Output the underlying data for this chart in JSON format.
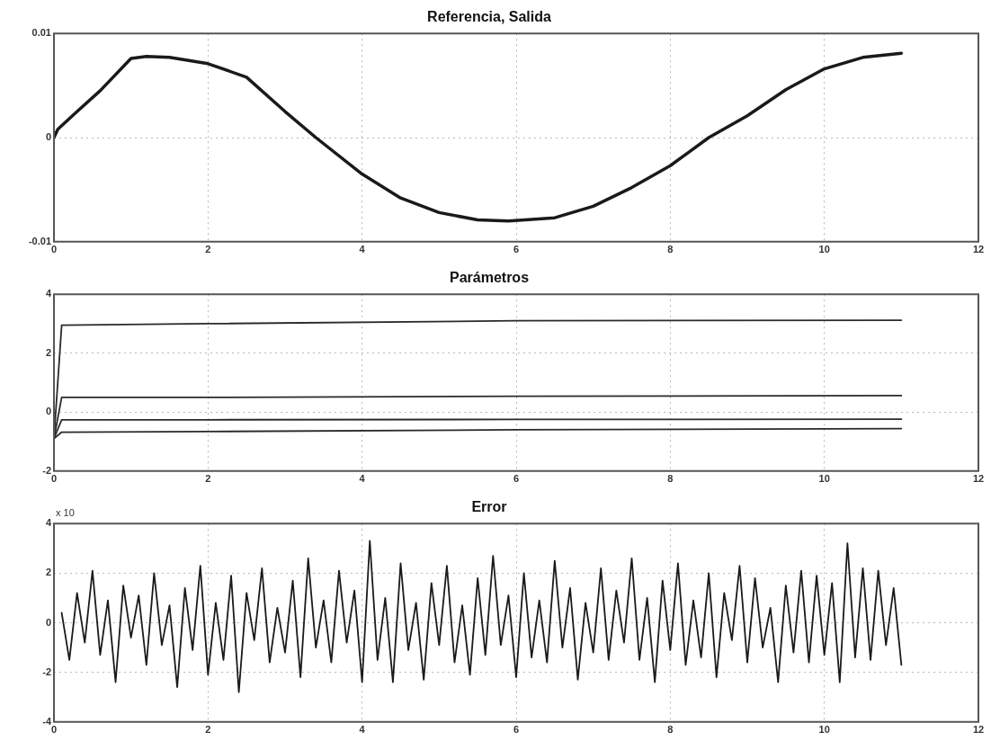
{
  "chart_data": [
    {
      "type": "line",
      "title": "Referencia, Salida",
      "xlim": [
        0,
        12
      ],
      "xticks": [
        0,
        2,
        4,
        6,
        8,
        10,
        12
      ],
      "ylim": [
        -0.01,
        0.01
      ],
      "yticks": [
        -0.01,
        0,
        0.01
      ],
      "grid": true,
      "series": [
        {
          "color": "#1a1a1a",
          "x": [
            0,
            0.05,
            0.3,
            0.6,
            1.0,
            1.2,
            1.5,
            2.0,
            2.5,
            3.0,
            3.4,
            4.0,
            4.5,
            5.0,
            5.5,
            5.9,
            6.5,
            7.0,
            7.5,
            8.0,
            8.5,
            9.0,
            9.5,
            10.0,
            10.5,
            11.0
          ],
          "values": [
            0,
            0.0008,
            0.0025,
            0.0045,
            0.0076,
            0.0078,
            0.0077,
            0.0071,
            0.0058,
            0.0025,
            0,
            -0.0035,
            -0.0058,
            -0.0072,
            -0.0079,
            -0.008,
            -0.0077,
            -0.0066,
            -0.0048,
            -0.0027,
            0,
            0.0021,
            0.0046,
            0.0066,
            0.0077,
            0.0081
          ]
        }
      ]
    },
    {
      "type": "line",
      "title": "Parámetros",
      "xlim": [
        0,
        12
      ],
      "xticks": [
        0,
        2,
        4,
        6,
        8,
        10,
        12
      ],
      "ylim": [
        -2,
        4
      ],
      "yticks": [
        -2,
        0,
        2,
        4
      ],
      "grid": true,
      "series": [
        {
          "color": "#2a2a2a",
          "x": [
            0,
            0.1,
            2,
            6,
            11
          ],
          "values": [
            -0.9,
            2.95,
            3.0,
            3.1,
            3.12
          ]
        },
        {
          "color": "#2a2a2a",
          "x": [
            0,
            0.1,
            2,
            6,
            11
          ],
          "values": [
            -0.9,
            0.5,
            0.5,
            0.54,
            0.56
          ]
        },
        {
          "color": "#2a2a2a",
          "x": [
            0,
            0.1,
            2,
            6,
            11
          ],
          "values": [
            -0.9,
            -0.26,
            -0.26,
            -0.25,
            -0.24
          ]
        },
        {
          "color": "#2a2a2a",
          "x": [
            0,
            0.1,
            2,
            6,
            11
          ],
          "values": [
            -0.9,
            -0.68,
            -0.66,
            -0.6,
            -0.56
          ]
        }
      ]
    },
    {
      "type": "line",
      "title": "Error",
      "xlim": [
        0,
        12
      ],
      "xticks": [
        0,
        2,
        4,
        6,
        8,
        10,
        12
      ],
      "ylim": [
        -4,
        4
      ],
      "yticks": [
        -4,
        -2,
        0,
        2,
        4
      ],
      "grid": true,
      "annotations": [
        "x 10"
      ],
      "series": [
        {
          "color": "#1a1a1a",
          "x": [
            0.1,
            0.2,
            0.3,
            0.4,
            0.5,
            0.6,
            0.7,
            0.8,
            0.9,
            1.0,
            1.1,
            1.2,
            1.3,
            1.4,
            1.5,
            1.6,
            1.7,
            1.8,
            1.9,
            2.0,
            2.1,
            2.2,
            2.3,
            2.4,
            2.5,
            2.6,
            2.7,
            2.8,
            2.9,
            3.0,
            3.1,
            3.2,
            3.3,
            3.4,
            3.5,
            3.6,
            3.7,
            3.8,
            3.9,
            4.0,
            4.1,
            4.2,
            4.3,
            4.4,
            4.5,
            4.6,
            4.7,
            4.8,
            4.9,
            5.0,
            5.1,
            5.2,
            5.3,
            5.4,
            5.5,
            5.6,
            5.7,
            5.8,
            5.9,
            6.0,
            6.1,
            6.2,
            6.3,
            6.4,
            6.5,
            6.6,
            6.7,
            6.8,
            6.9,
            7.0,
            7.1,
            7.2,
            7.3,
            7.4,
            7.5,
            7.6,
            7.7,
            7.8,
            7.9,
            8.0,
            8.1,
            8.2,
            8.3,
            8.4,
            8.5,
            8.6,
            8.7,
            8.8,
            8.9,
            9.0,
            9.1,
            9.2,
            9.3,
            9.4,
            9.5,
            9.6,
            9.7,
            9.8,
            9.9,
            10.0,
            10.1,
            10.2,
            10.3,
            10.4,
            10.5,
            10.6,
            10.7,
            10.8,
            10.9,
            11.0
          ],
          "values": [
            0.4,
            -1.5,
            1.2,
            -0.8,
            2.1,
            -1.3,
            0.9,
            -2.4,
            1.5,
            -0.6,
            1.1,
            -1.7,
            2.0,
            -0.9,
            0.7,
            -2.6,
            1.4,
            -1.1,
            2.3,
            -2.1,
            0.8,
            -1.5,
            1.9,
            -2.8,
            1.2,
            -0.7,
            2.2,
            -1.6,
            0.6,
            -1.2,
            1.7,
            -2.2,
            2.6,
            -1.0,
            0.9,
            -1.6,
            2.1,
            -0.8,
            1.3,
            -2.4,
            3.3,
            -1.5,
            1.0,
            -2.4,
            2.4,
            -1.1,
            0.8,
            -2.3,
            1.6,
            -0.9,
            2.3,
            -1.6,
            0.7,
            -2.1,
            1.8,
            -1.3,
            2.7,
            -0.9,
            1.1,
            -2.2,
            2.0,
            -1.4,
            0.9,
            -1.6,
            2.5,
            -1.0,
            1.4,
            -2.3,
            0.8,
            -1.2,
            2.2,
            -1.5,
            1.3,
            -0.8,
            2.6,
            -1.5,
            1.0,
            -2.4,
            1.7,
            -1.1,
            2.4,
            -1.7,
            0.9,
            -1.4,
            2.0,
            -2.2,
            1.2,
            -0.7,
            2.3,
            -1.6,
            1.8,
            -1.0,
            0.6,
            -2.4,
            1.5,
            -1.2,
            2.1,
            -1.6,
            1.9,
            -1.3,
            1.6,
            -2.4,
            3.2,
            -1.4,
            2.2,
            -1.5,
            2.1,
            -0.9,
            1.4,
            -1.7
          ]
        }
      ]
    }
  ]
}
